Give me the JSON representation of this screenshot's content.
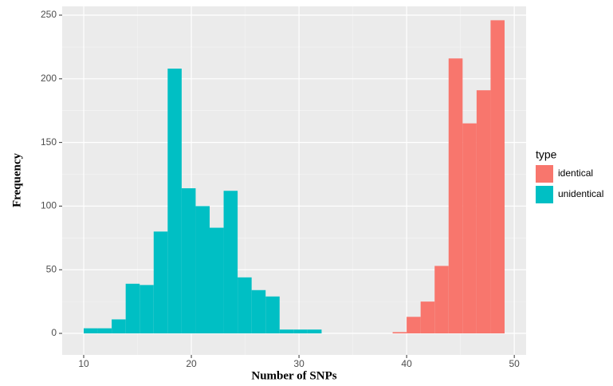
{
  "chart_data": {
    "type": "histogram",
    "x_label": "Number of SNPs",
    "y_label": "Frequency",
    "legend_title": "type",
    "xlim": [
      8,
      51.1
    ],
    "ylim": [
      -16.9,
      256.9
    ],
    "xticks": [
      10,
      20,
      30,
      40,
      50
    ],
    "yticks": [
      0,
      50,
      100,
      150,
      200,
      250
    ],
    "grid": true,
    "legend": "right",
    "series": [
      {
        "name": "identical",
        "color": "#f8766d",
        "bins": [
          38.7,
          40.0,
          41.3,
          42.6,
          43.9,
          45.2,
          46.5,
          47.8,
          49.1
        ],
        "values": [
          1,
          13,
          25,
          53,
          216,
          165,
          191,
          246
        ]
      },
      {
        "name": "unidentical",
        "color": "#00bfc4",
        "bins": [
          10,
          11.3,
          12.6,
          13.9,
          15.2,
          16.5,
          17.8,
          19.1,
          20.4,
          21.7,
          23.0,
          24.3,
          25.6,
          26.9,
          28.2,
          29.5,
          30.8,
          32.1
        ],
        "values": [
          4,
          4,
          11,
          39,
          38,
          80,
          208,
          114,
          100,
          83,
          112,
          44,
          34,
          29,
          3,
          3,
          3
        ]
      }
    ]
  }
}
